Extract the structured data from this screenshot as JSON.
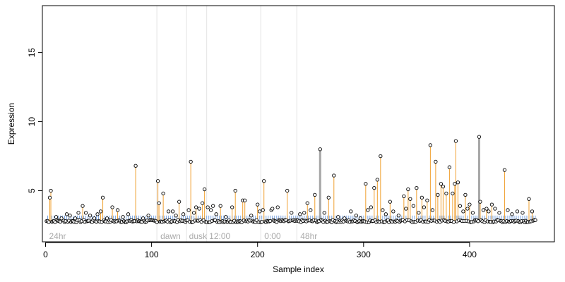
{
  "chart_data": {
    "type": "scatter",
    "xlabel": "Sample index",
    "ylabel": "Expression",
    "xlim": [
      -3,
      480
    ],
    "ylim": [
      1.3,
      18.4
    ],
    "x_ticks": [
      0,
      100,
      200,
      300,
      400
    ],
    "y_ticks": [
      5,
      10,
      15
    ],
    "baseline": 2.8,
    "grid": false,
    "colors": {
      "stem": "#f0a030",
      "stem_bold": "#a6a6a6",
      "band_tick": "#7ea6e0",
      "point_fill": "#ffffff",
      "point_stroke": "#000000",
      "divider": "#e3e3e3",
      "region_label": "#aaaaaa"
    },
    "dividers": [
      105,
      133,
      152,
      203,
      237
    ],
    "regions": [
      {
        "label": "24hr",
        "x": 2
      },
      {
        "label": "dawn",
        "x": 107
      },
      {
        "label": "dusk",
        "x": 134
      },
      {
        "label": "12:00",
        "x": 153
      },
      {
        "label": "0:00",
        "x": 205
      },
      {
        "label": "48hr",
        "x": 239
      }
    ],
    "band": {
      "y_low": 2.9,
      "y_high": 3.2,
      "x_start": 2,
      "x_end": 462,
      "step": 2
    },
    "highlights": [
      {
        "x": 4,
        "y": 4.5
      },
      {
        "x": 5,
        "y": 5.0
      },
      {
        "x": 35,
        "y": 3.9
      },
      {
        "x": 52,
        "y": 3.5
      },
      {
        "x": 54,
        "y": 4.5
      },
      {
        "x": 63,
        "y": 3.8
      },
      {
        "x": 68,
        "y": 3.6
      },
      {
        "x": 85,
        "y": 6.8
      },
      {
        "x": 106,
        "y": 5.7
      },
      {
        "x": 107,
        "y": 4.1
      },
      {
        "x": 111,
        "y": 4.8
      },
      {
        "x": 126,
        "y": 4.2
      },
      {
        "x": 137,
        "y": 7.1
      },
      {
        "x": 142,
        "y": 3.8
      },
      {
        "x": 148,
        "y": 4.1
      },
      {
        "x": 150,
        "y": 5.1
      },
      {
        "x": 165,
        "y": 3.9
      },
      {
        "x": 176,
        "y": 3.8
      },
      {
        "x": 179,
        "y": 5.0
      },
      {
        "x": 186,
        "y": 4.3
      },
      {
        "x": 188,
        "y": 4.3
      },
      {
        "x": 200,
        "y": 4.0
      },
      {
        "x": 206,
        "y": 5.7
      },
      {
        "x": 228,
        "y": 5.0
      },
      {
        "x": 247,
        "y": 4.1
      },
      {
        "x": 254,
        "y": 4.7
      },
      {
        "x": 259,
        "y": 8.0,
        "bold": true
      },
      {
        "x": 267,
        "y": 4.5
      },
      {
        "x": 272,
        "y": 6.1
      },
      {
        "x": 302,
        "y": 5.5
      },
      {
        "x": 310,
        "y": 5.2
      },
      {
        "x": 313,
        "y": 5.8
      },
      {
        "x": 316,
        "y": 7.5
      },
      {
        "x": 325,
        "y": 4.2
      },
      {
        "x": 338,
        "y": 4.6
      },
      {
        "x": 342,
        "y": 5.1
      },
      {
        "x": 344,
        "y": 4.4
      },
      {
        "x": 350,
        "y": 5.2
      },
      {
        "x": 355,
        "y": 4.5
      },
      {
        "x": 360,
        "y": 4.3
      },
      {
        "x": 363,
        "y": 8.3
      },
      {
        "x": 368,
        "y": 7.1
      },
      {
        "x": 370,
        "y": 4.7
      },
      {
        "x": 373,
        "y": 5.5
      },
      {
        "x": 375,
        "y": 5.3
      },
      {
        "x": 378,
        "y": 4.8
      },
      {
        "x": 381,
        "y": 6.7
      },
      {
        "x": 384,
        "y": 4.8
      },
      {
        "x": 386,
        "y": 5.5
      },
      {
        "x": 387,
        "y": 8.6
      },
      {
        "x": 389,
        "y": 5.6
      },
      {
        "x": 396,
        "y": 4.7
      },
      {
        "x": 400,
        "y": 4.0
      },
      {
        "x": 409,
        "y": 8.9,
        "bold": true
      },
      {
        "x": 410,
        "y": 4.2
      },
      {
        "x": 416,
        "y": 3.7
      },
      {
        "x": 421,
        "y": 4.0
      },
      {
        "x": 433,
        "y": 6.5
      },
      {
        "x": 456,
        "y": 4.4
      },
      {
        "x": 459,
        "y": 3.5
      }
    ],
    "background_points": [
      {
        "x": 10,
        "y": 3.1
      },
      {
        "x": 15,
        "y": 3.0
      },
      {
        "x": 20,
        "y": 3.3
      },
      {
        "x": 23,
        "y": 3.2
      },
      {
        "x": 28,
        "y": 3.0
      },
      {
        "x": 31,
        "y": 3.4
      },
      {
        "x": 38,
        "y": 3.4
      },
      {
        "x": 42,
        "y": 3.2
      },
      {
        "x": 46,
        "y": 3.0
      },
      {
        "x": 49,
        "y": 3.3
      },
      {
        "x": 58,
        "y": 3.0
      },
      {
        "x": 73,
        "y": 3.1
      },
      {
        "x": 78,
        "y": 3.3
      },
      {
        "x": 92,
        "y": 3.0
      },
      {
        "x": 97,
        "y": 3.2
      },
      {
        "x": 116,
        "y": 3.5
      },
      {
        "x": 120,
        "y": 3.5
      },
      {
        "x": 123,
        "y": 3.2
      },
      {
        "x": 130,
        "y": 3.3
      },
      {
        "x": 135,
        "y": 3.6
      },
      {
        "x": 140,
        "y": 3.4
      },
      {
        "x": 145,
        "y": 3.7
      },
      {
        "x": 153,
        "y": 3.8
      },
      {
        "x": 156,
        "y": 3.6
      },
      {
        "x": 158,
        "y": 3.9
      },
      {
        "x": 161,
        "y": 3.3
      },
      {
        "x": 170,
        "y": 3.1
      },
      {
        "x": 194,
        "y": 3.2
      },
      {
        "x": 202,
        "y": 3.5
      },
      {
        "x": 205,
        "y": 3.6
      },
      {
        "x": 213,
        "y": 3.6
      },
      {
        "x": 214,
        "y": 3.7
      },
      {
        "x": 219,
        "y": 3.8
      },
      {
        "x": 232,
        "y": 3.4
      },
      {
        "x": 240,
        "y": 3.3
      },
      {
        "x": 244,
        "y": 3.4
      },
      {
        "x": 250,
        "y": 3.6
      },
      {
        "x": 263,
        "y": 3.4
      },
      {
        "x": 276,
        "y": 3.1
      },
      {
        "x": 282,
        "y": 3.0
      },
      {
        "x": 288,
        "y": 3.5
      },
      {
        "x": 293,
        "y": 3.2
      },
      {
        "x": 297,
        "y": 3.0
      },
      {
        "x": 304,
        "y": 3.6
      },
      {
        "x": 307,
        "y": 3.8
      },
      {
        "x": 318,
        "y": 3.6
      },
      {
        "x": 321,
        "y": 3.3
      },
      {
        "x": 328,
        "y": 3.5
      },
      {
        "x": 333,
        "y": 3.2
      },
      {
        "x": 340,
        "y": 3.7
      },
      {
        "x": 347,
        "y": 3.9
      },
      {
        "x": 352,
        "y": 3.4
      },
      {
        "x": 357,
        "y": 3.8
      },
      {
        "x": 365,
        "y": 3.6
      },
      {
        "x": 391,
        "y": 3.9
      },
      {
        "x": 394,
        "y": 3.5
      },
      {
        "x": 398,
        "y": 3.7
      },
      {
        "x": 403,
        "y": 3.4
      },
      {
        "x": 413,
        "y": 3.6
      },
      {
        "x": 418,
        "y": 3.5
      },
      {
        "x": 424,
        "y": 3.7
      },
      {
        "x": 428,
        "y": 3.4
      },
      {
        "x": 436,
        "y": 3.6
      },
      {
        "x": 440,
        "y": 3.3
      },
      {
        "x": 445,
        "y": 3.5
      },
      {
        "x": 450,
        "y": 3.4
      }
    ]
  }
}
